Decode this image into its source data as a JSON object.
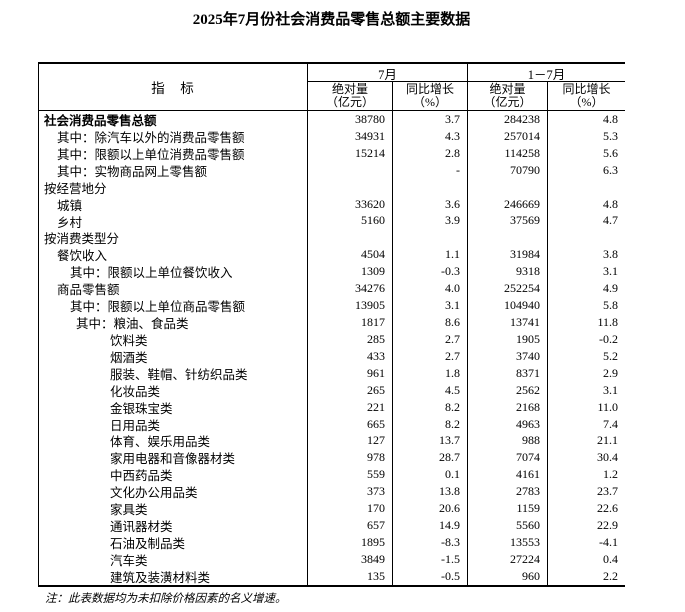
{
  "chart_data": {
    "type": "table",
    "title": "2025年7月份社会消费品零售总额主要数据",
    "note": "注：此表数据均为未扣除价格因素的名义增速。",
    "header": {
      "indicator": "指　标",
      "groups": [
        {
          "label": "7月"
        },
        {
          "label": "1－7月"
        }
      ],
      "columns": [
        {
          "line1": "绝对量",
          "line2": "（亿元）"
        },
        {
          "line1": "同比增长",
          "line2": "（%）"
        },
        {
          "line1": "绝对量",
          "line2": "（亿元）"
        },
        {
          "line1": "同比增长",
          "line2": "（%）"
        }
      ]
    },
    "rows": [
      {
        "label": "社会消费品零售总额",
        "indent": 0,
        "bold": true,
        "values": [
          "38780",
          "3.7",
          "284238",
          "4.8"
        ]
      },
      {
        "label": "其中：除汽车以外的消费品零售额",
        "indent": 1,
        "bold": false,
        "values": [
          "34931",
          "4.3",
          "257014",
          "5.3"
        ]
      },
      {
        "label": "其中：限额以上单位消费品零售额",
        "indent": 1,
        "bold": false,
        "values": [
          "15214",
          "2.8",
          "114258",
          "5.6"
        ]
      },
      {
        "label": "其中：实物商品网上零售额",
        "indent": 1,
        "bold": false,
        "values": [
          "",
          "-",
          "70790",
          "6.3"
        ]
      },
      {
        "label": "按经营地分",
        "indent": 0,
        "bold": false,
        "values": [
          "",
          "",
          "",
          ""
        ]
      },
      {
        "label": "城镇",
        "indent": 1,
        "bold": false,
        "values": [
          "33620",
          "3.6",
          "246669",
          "4.8"
        ]
      },
      {
        "label": "乡村",
        "indent": 1,
        "bold": false,
        "values": [
          "5160",
          "3.9",
          "37569",
          "4.7"
        ]
      },
      {
        "label": "按消费类型分",
        "indent": 0,
        "bold": false,
        "values": [
          "",
          "",
          "",
          ""
        ]
      },
      {
        "label": "餐饮收入",
        "indent": 1,
        "bold": false,
        "values": [
          "4504",
          "1.1",
          "31984",
          "3.8"
        ]
      },
      {
        "label": "其中：限额以上单位餐饮收入",
        "indent": 2,
        "bold": false,
        "values": [
          "1309",
          "-0.3",
          "9318",
          "3.1"
        ]
      },
      {
        "label": "商品零售额",
        "indent": 1,
        "bold": false,
        "values": [
          "34276",
          "4.0",
          "252254",
          "4.9"
        ]
      },
      {
        "label": "其中：限额以上单位商品零售额",
        "indent": 2,
        "bold": false,
        "values": [
          "13905",
          "3.1",
          "104940",
          "5.8"
        ]
      },
      {
        "label": "其中：粮油、食品类",
        "indent": 3,
        "bold": false,
        "values": [
          "1817",
          "8.6",
          "13741",
          "11.8"
        ]
      },
      {
        "label": "饮料类",
        "indent": 4,
        "bold": false,
        "values": [
          "285",
          "2.7",
          "1905",
          "-0.2"
        ]
      },
      {
        "label": "烟酒类",
        "indent": 4,
        "bold": false,
        "values": [
          "433",
          "2.7",
          "3740",
          "5.2"
        ]
      },
      {
        "label": "服装、鞋帽、针纺织品类",
        "indent": 4,
        "bold": false,
        "values": [
          "961",
          "1.8",
          "8371",
          "2.9"
        ]
      },
      {
        "label": "化妆品类",
        "indent": 4,
        "bold": false,
        "values": [
          "265",
          "4.5",
          "2562",
          "3.1"
        ]
      },
      {
        "label": "金银珠宝类",
        "indent": 4,
        "bold": false,
        "values": [
          "221",
          "8.2",
          "2168",
          "11.0"
        ]
      },
      {
        "label": "日用品类",
        "indent": 4,
        "bold": false,
        "values": [
          "665",
          "8.2",
          "4963",
          "7.4"
        ]
      },
      {
        "label": "体育、娱乐用品类",
        "indent": 4,
        "bold": false,
        "values": [
          "127",
          "13.7",
          "988",
          "21.1"
        ]
      },
      {
        "label": "家用电器和音像器材类",
        "indent": 4,
        "bold": false,
        "values": [
          "978",
          "28.7",
          "7074",
          "30.4"
        ]
      },
      {
        "label": "中西药品类",
        "indent": 4,
        "bold": false,
        "values": [
          "559",
          "0.1",
          "4161",
          "1.2"
        ]
      },
      {
        "label": "文化办公用品类",
        "indent": 4,
        "bold": false,
        "values": [
          "373",
          "13.8",
          "2783",
          "23.7"
        ]
      },
      {
        "label": "家具类",
        "indent": 4,
        "bold": false,
        "values": [
          "170",
          "20.6",
          "1159",
          "22.6"
        ]
      },
      {
        "label": "通讯器材类",
        "indent": 4,
        "bold": false,
        "values": [
          "657",
          "14.9",
          "5560",
          "22.9"
        ]
      },
      {
        "label": "石油及制品类",
        "indent": 4,
        "bold": false,
        "values": [
          "1895",
          "-8.3",
          "13553",
          "-4.1"
        ]
      },
      {
        "label": "汽车类",
        "indent": 4,
        "bold": false,
        "values": [
          "3849",
          "-1.5",
          "27224",
          "0.4"
        ]
      },
      {
        "label": "建筑及装潢材料类",
        "indent": 4,
        "bold": false,
        "values": [
          "135",
          "-0.5",
          "960",
          "2.2"
        ]
      }
    ]
  }
}
